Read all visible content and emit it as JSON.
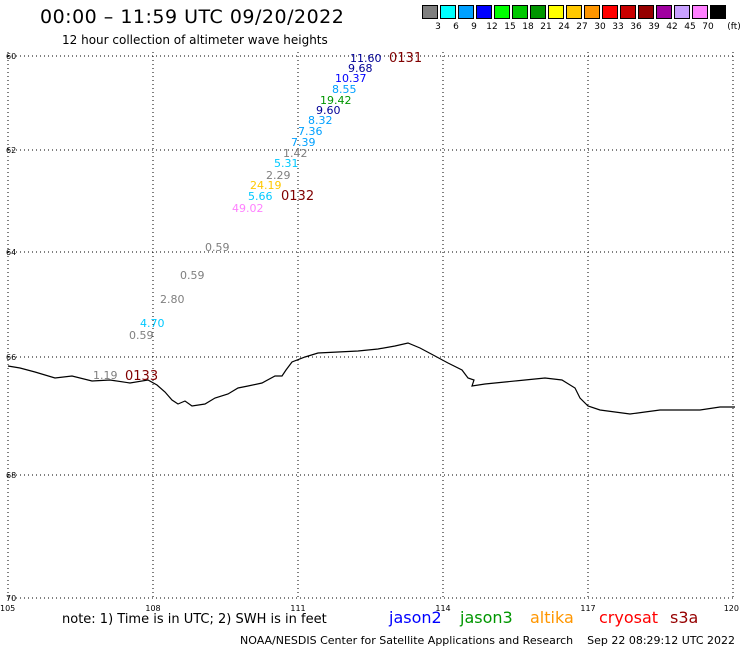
{
  "title": "00:00 – 11:59 UTC 09/20/2022",
  "subtitle": "12 hour collection of altimeter wave heights",
  "legend": {
    "colors": [
      "#7f7f7f",
      "#00ffff",
      "#00a0ff",
      "#0000ff",
      "#00ff00",
      "#00c800",
      "#009600",
      "#ffff00",
      "#ffc800",
      "#ff9600",
      "#ff0000",
      "#c80000",
      "#960000",
      "#a000a0",
      "#c8a0ff",
      "#ff80ff",
      "#000000"
    ],
    "labels": [
      "3",
      "6",
      "9",
      "12",
      "15",
      "18",
      "21",
      "24",
      "27",
      "30",
      "33",
      "36",
      "39",
      "42",
      "45",
      "70",
      "(ft)"
    ]
  },
  "axes": {
    "lat_labels": [
      "60",
      "62",
      "64",
      "66",
      "68",
      "70"
    ],
    "lon_labels": [
      "105",
      "108",
      "111",
      "114",
      "117",
      "120"
    ]
  },
  "passes": [
    {
      "id": "0131"
    },
    {
      "id": "0132"
    },
    {
      "id": "0133"
    }
  ],
  "observations": [
    {
      "value": "11.60",
      "color": "#000096"
    },
    {
      "value": "9.68",
      "color": "#000096"
    },
    {
      "value": "10.37",
      "color": "#0000ff"
    },
    {
      "value": "8.55",
      "color": "#00a0ff"
    },
    {
      "value": "19.42",
      "color": "#009600"
    },
    {
      "value": "9.60",
      "color": "#000096"
    },
    {
      "value": "8.32",
      "color": "#00a0ff"
    },
    {
      "value": "7.36",
      "color": "#00a0ff"
    },
    {
      "value": "7.39",
      "color": "#00a0ff"
    },
    {
      "value": "1.42",
      "color": "#7f7f7f"
    },
    {
      "value": "5.31",
      "color": "#00c8ff"
    },
    {
      "value": "2.29",
      "color": "#7f7f7f"
    },
    {
      "value": "24.19",
      "color": "#ffc800"
    },
    {
      "value": "5.66",
      "color": "#00c8ff"
    },
    {
      "value": "49.02",
      "color": "#ff80ff"
    },
    {
      "value": "0.59",
      "color": "#7f7f7f"
    },
    {
      "value": "0.59",
      "color": "#7f7f7f"
    },
    {
      "value": "2.80",
      "color": "#7f7f7f"
    },
    {
      "value": "4.70",
      "color": "#00c8ff"
    },
    {
      "value": "0.59",
      "color": "#7f7f7f"
    },
    {
      "value": "1.19",
      "color": "#7f7f7f"
    }
  ],
  "note": "note: 1) Time is in UTC; 2) SWH is in feet",
  "satellites": [
    {
      "name": "jason2",
      "color": "#0000ff"
    },
    {
      "name": "jason3",
      "color": "#009600"
    },
    {
      "name": "altika",
      "color": "#ff9600"
    },
    {
      "name": "cryosat",
      "color": "#ff0000"
    },
    {
      "name": "s3a",
      "color": "#960000"
    }
  ],
  "footer": "NOAA/NESDIS Center for Satellite Applications and Research    Sep 22 08:29:12 UTC 2022"
}
